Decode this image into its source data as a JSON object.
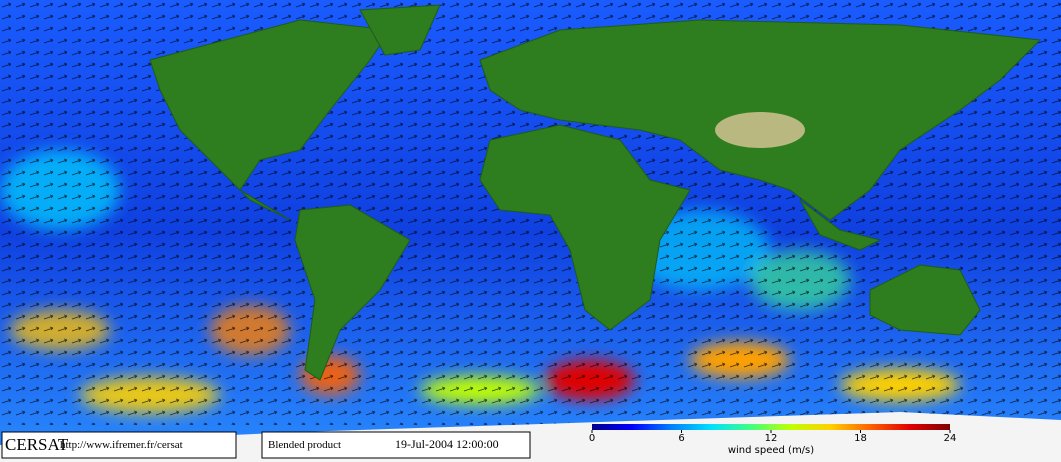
{
  "footer": {
    "brand": "CERSAT",
    "url": "http://www.ifremer.fr/cersat",
    "product": "Blended product",
    "date": "19-Jul-2004 12:00:00"
  },
  "colorbar": {
    "label": "wind speed (m/s)",
    "range": [
      0,
      24
    ],
    "ticks": [
      0,
      6,
      12,
      18,
      24
    ],
    "colors": [
      "#00008b",
      "#0000ff",
      "#0080ff",
      "#00e0ff",
      "#40ff80",
      "#c0ff00",
      "#ffd000",
      "#ff6000",
      "#e00000",
      "#800000"
    ]
  }
}
